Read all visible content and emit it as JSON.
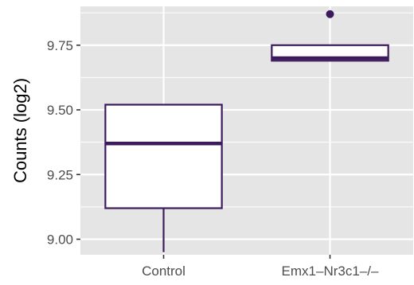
{
  "chart_data": {
    "type": "box",
    "title": "",
    "xlabel": "",
    "ylabel": "Counts (log2)",
    "categories": [
      "Control",
      "Emx1–Nr3c1–/–"
    ],
    "ylim": [
      8.94,
      9.9
    ],
    "yticks": [
      9.0,
      9.25,
      9.5,
      9.75
    ],
    "ytick_labels": [
      "9.00",
      "9.25",
      "9.50",
      "9.75"
    ],
    "grid": true,
    "legend": "none",
    "boxes": [
      {
        "category": "Control",
        "whisker_low": 8.95,
        "q1": 9.12,
        "median": 9.37,
        "q3": 9.52,
        "whisker_high": 9.52,
        "outliers": []
      },
      {
        "category": "Emx1–Nr3c1–/–",
        "whisker_low": 9.69,
        "q1": 9.69,
        "median": 9.7,
        "q3": 9.75,
        "whisker_high": 9.75,
        "outliers": [
          9.87
        ]
      }
    ],
    "colors": {
      "panel_background": "#e5e5e5",
      "grid": "#ffffff",
      "box_line": "#3d1a5c",
      "box_fill": "#ffffff",
      "tick_label": "#4d4d4d",
      "tick_mark": "#333333"
    }
  }
}
